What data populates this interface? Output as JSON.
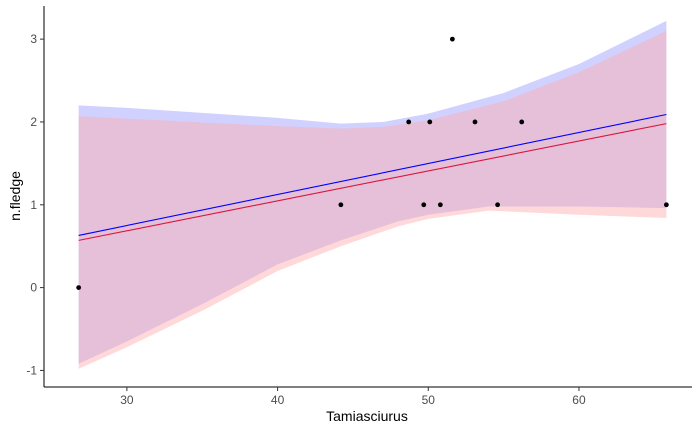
{
  "chart_data": {
    "type": "scatter",
    "xlabel": "Tamiasciurus",
    "ylabel": "n.fledge",
    "xlim": [
      24.5,
      67.5
    ],
    "ylim": [
      -1.2,
      3.4
    ],
    "x_ticks": [
      30,
      40,
      50,
      60
    ],
    "y_ticks": [
      -1,
      0,
      1,
      2,
      3
    ],
    "grid": false,
    "points": [
      {
        "x": 26.8,
        "y": 0
      },
      {
        "x": 44.2,
        "y": 1
      },
      {
        "x": 48.7,
        "y": 2
      },
      {
        "x": 49.7,
        "y": 1
      },
      {
        "x": 50.1,
        "y": 2
      },
      {
        "x": 50.8,
        "y": 1
      },
      {
        "x": 51.6,
        "y": 3
      },
      {
        "x": 53.1,
        "y": 2
      },
      {
        "x": 54.6,
        "y": 1
      },
      {
        "x": 56.2,
        "y": 2
      },
      {
        "x": 65.8,
        "y": 1
      }
    ],
    "fits": [
      {
        "color": "#0000ff",
        "band_color": "#9999ff",
        "line": [
          {
            "x": 26.8,
            "y": 0.63
          },
          {
            "x": 65.8,
            "y": 2.09
          }
        ],
        "band_upper": [
          {
            "x": 26.8,
            "y": 2.2
          },
          {
            "x": 30,
            "y": 2.17
          },
          {
            "x": 40,
            "y": 2.05
          },
          {
            "x": 44.2,
            "y": 1.98
          },
          {
            "x": 47,
            "y": 2.0
          },
          {
            "x": 50,
            "y": 2.1
          },
          {
            "x": 55,
            "y": 2.35
          },
          {
            "x": 60,
            "y": 2.7
          },
          {
            "x": 65.8,
            "y": 3.22
          }
        ],
        "band_lower": [
          {
            "x": 26.8,
            "y": -0.92
          },
          {
            "x": 30,
            "y": -0.65
          },
          {
            "x": 35,
            "y": -0.2
          },
          {
            "x": 40,
            "y": 0.28
          },
          {
            "x": 44.2,
            "y": 0.57
          },
          {
            "x": 48,
            "y": 0.8
          },
          {
            "x": 50,
            "y": 0.88
          },
          {
            "x": 54,
            "y": 0.98
          },
          {
            "x": 60,
            "y": 0.98
          },
          {
            "x": 65.8,
            "y": 0.96
          }
        ]
      },
      {
        "color": "#dc143c",
        "band_color": "#ffaaaa",
        "line": [
          {
            "x": 26.8,
            "y": 0.57
          },
          {
            "x": 65.8,
            "y": 1.98
          }
        ],
        "band_upper": [
          {
            "x": 26.8,
            "y": 2.07
          },
          {
            "x": 30,
            "y": 2.04
          },
          {
            "x": 40,
            "y": 1.95
          },
          {
            "x": 44.2,
            "y": 1.92
          },
          {
            "x": 47,
            "y": 1.94
          },
          {
            "x": 50,
            "y": 2.02
          },
          {
            "x": 55,
            "y": 2.25
          },
          {
            "x": 60,
            "y": 2.6
          },
          {
            "x": 65.8,
            "y": 3.1
          }
        ],
        "band_lower": [
          {
            "x": 26.8,
            "y": -0.98
          },
          {
            "x": 30,
            "y": -0.72
          },
          {
            "x": 35,
            "y": -0.28
          },
          {
            "x": 40,
            "y": 0.2
          },
          {
            "x": 44.2,
            "y": 0.5
          },
          {
            "x": 48,
            "y": 0.74
          },
          {
            "x": 50,
            "y": 0.83
          },
          {
            "x": 54,
            "y": 0.93
          },
          {
            "x": 60,
            "y": 0.88
          },
          {
            "x": 65.8,
            "y": 0.84
          }
        ]
      }
    ]
  }
}
